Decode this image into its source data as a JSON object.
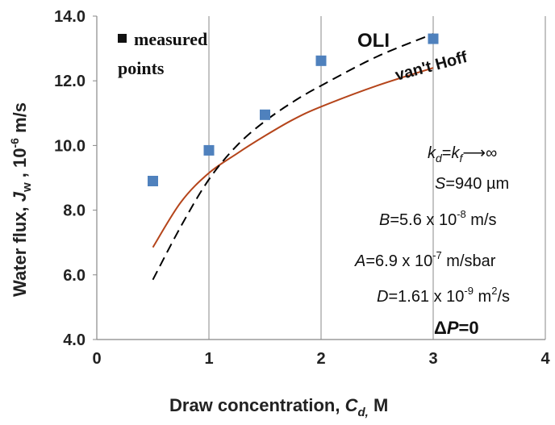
{
  "chart_data": {
    "type": "scatter+line",
    "xlabel": "Draw concentration,  Cd, M",
    "xlabel_parts": {
      "prefix": "Draw concentration,  ",
      "var": "C",
      "sub": "d,",
      "unit": " M"
    },
    "ylabel_parts": {
      "prefix": "Water flux, ",
      "var": "J",
      "sub": "w",
      "mid": " , 10",
      "sup": "-6",
      "unit": " m/s"
    },
    "xlim": [
      0,
      4
    ],
    "ylim": [
      4.0,
      14.0
    ],
    "xticks": [
      "0",
      "1",
      "2",
      "3",
      "4"
    ],
    "xtick_values": [
      0,
      1,
      2,
      3,
      4
    ],
    "yticks": [
      "4.0",
      "6.0",
      "8.0",
      "10.0",
      "12.0",
      "14.0"
    ],
    "ytick_values": [
      4,
      6,
      8,
      10,
      12,
      14
    ],
    "grid": "vertical",
    "series": [
      {
        "name": "measured points",
        "kind": "scatter",
        "color": "#4f81bd",
        "x": [
          0.5,
          1.0,
          1.5,
          2.0,
          3.0
        ],
        "y": [
          8.9,
          9.85,
          10.95,
          12.62,
          13.3
        ]
      },
      {
        "name": "OLI",
        "kind": "line",
        "style": "dashed",
        "color": "#000000",
        "x": [
          0.5,
          0.75,
          1.0,
          1.25,
          1.5,
          1.75,
          2.0,
          2.5,
          3.0
        ],
        "y": [
          5.85,
          7.5,
          8.95,
          10.0,
          10.75,
          11.35,
          11.85,
          12.75,
          13.45
        ]
      },
      {
        "name": "van't Hoff",
        "kind": "line",
        "style": "solid",
        "color": "#b5451b",
        "x": [
          0.5,
          0.75,
          1.0,
          1.25,
          1.5,
          1.75,
          2.0,
          2.5,
          3.0
        ],
        "y": [
          6.85,
          8.25,
          9.15,
          9.75,
          10.3,
          10.8,
          11.2,
          11.85,
          12.4
        ]
      }
    ],
    "legend": {
      "marker_label": "measured",
      "second_line": "points"
    },
    "labels": {
      "oli": "OLI",
      "vanthoff": "van't Hoff"
    },
    "parameters": {
      "k": {
        "k1": "k",
        "s1": "d",
        "eq": "=",
        "k2": "k",
        "s2": "f",
        "tail": "⟶∞"
      },
      "S": {
        "var": "S",
        "text": "=940 µm"
      },
      "B": {
        "var": "B",
        "text": "=5.6 x 10",
        "sup": "-8",
        "unit": " m/s"
      },
      "A": {
        "var": "A",
        "text": "=6.9 x 10",
        "sup": "-7",
        "unit": " m/sbar"
      },
      "D": {
        "var": "D",
        "text": "=1.61 x 10",
        "sup": "-9",
        "unit": " m",
        "sup2": "2",
        "unit2": "/s"
      },
      "P": {
        "delta": "Δ",
        "var": "P",
        "text": "=0"
      }
    }
  }
}
